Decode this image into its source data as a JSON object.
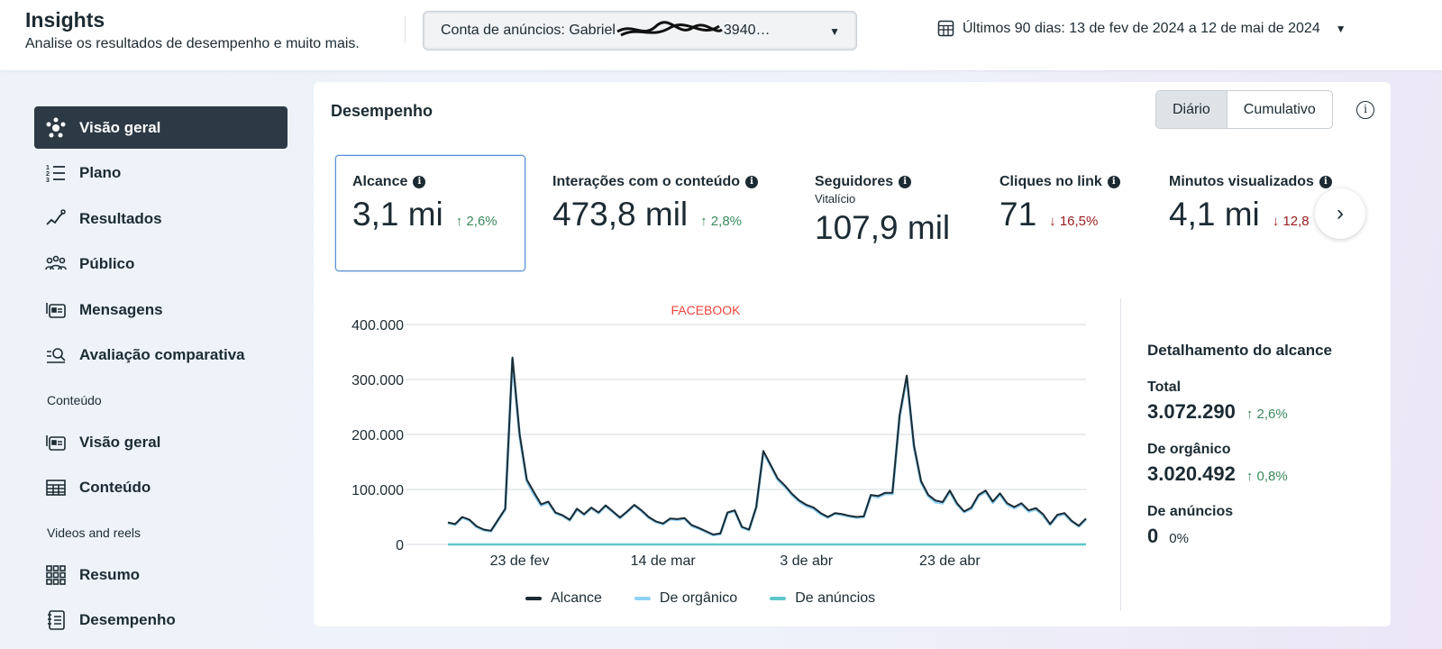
{
  "header": {
    "title": "Insights",
    "subtitle": "Analise os resultados de desempenho e muito mais.",
    "account_label": "Conta de anúncios: Gabriel",
    "account_suffix": "3940…",
    "date_range": "Últimos 90 dias: 13 de fev de 2024 a 12 de mai de 2024"
  },
  "sidebar": {
    "items": [
      {
        "label": "Visão geral",
        "icon": "network-icon"
      },
      {
        "label": "Plano",
        "icon": "numbered-list-icon"
      },
      {
        "label": "Resultados",
        "icon": "trend-icon"
      },
      {
        "label": "Público",
        "icon": "people-icon"
      },
      {
        "label": "Mensagens",
        "icon": "messages-icon"
      },
      {
        "label": "Avaliação comparativa",
        "icon": "benchmark-icon"
      }
    ],
    "section_content": "Conteúdo",
    "content_items": [
      {
        "label": "Visão geral",
        "icon": "content-overview-icon"
      },
      {
        "label": "Conteúdo",
        "icon": "table-icon"
      }
    ],
    "section_video": "Videos and reels",
    "video_items": [
      {
        "label": "Resumo",
        "icon": "grid-icon"
      },
      {
        "label": "Desempenho",
        "icon": "notebook-icon"
      }
    ]
  },
  "panel": {
    "title": "Desempenho",
    "toggle": [
      "Diário",
      "Cumulativo"
    ],
    "metrics": [
      {
        "label": "Alcance",
        "value": "3,1 mi",
        "change": "↑ 2,6%",
        "dir": "up"
      },
      {
        "label": "Interações com o conteúdo",
        "value": "473,8 mil",
        "change": "↑ 2,8%",
        "dir": "up"
      },
      {
        "label": "Seguidores",
        "sub": "Vitalício",
        "value": "107,9 mil"
      },
      {
        "label": "Cliques no link",
        "value": "71",
        "change": "↓ 16,5%",
        "dir": "down"
      },
      {
        "label": "Minutos visualizados",
        "value": "4,1 mi",
        "change": "↓ 12,8",
        "dir": "down"
      }
    ],
    "breakdown": {
      "title": "Detalhamento do alcance",
      "rows": [
        {
          "label": "Total",
          "value": "3.072.290",
          "change": "↑ 2,6%"
        },
        {
          "label": "De orgânico",
          "value": "3.020.492",
          "change": "↑ 0,8%"
        },
        {
          "label": "De anúncios",
          "value": "0",
          "change": "0%"
        }
      ]
    }
  },
  "chart_data": {
    "type": "line",
    "title": "FACEBOOK",
    "x_start": "13 de fev de 2024",
    "x_end": "12 de mai de 2024",
    "xticks": [
      {
        "label": "23 de fev",
        "index": 10
      },
      {
        "label": "14 de mar",
        "index": 30
      },
      {
        "label": "3 de abr",
        "index": 50
      },
      {
        "label": "23 de abr",
        "index": 70
      }
    ],
    "yticks": [
      "0",
      "100.000",
      "200.000",
      "300.000",
      "400.000"
    ],
    "ylim": [
      0,
      400000
    ],
    "series": [
      {
        "name": "Alcance",
        "color": "#1c2b33",
        "values": [
          40000,
          37000,
          50000,
          45000,
          33000,
          27000,
          25000,
          45000,
          65000,
          340000,
          200000,
          118000,
          95000,
          73000,
          78000,
          58000,
          53000,
          45000,
          65000,
          55000,
          67000,
          58000,
          71000,
          60000,
          49000,
          60000,
          72000,
          62000,
          50000,
          42000,
          38000,
          47000,
          46000,
          48000,
          35000,
          30000,
          24000,
          18000,
          20000,
          58000,
          62000,
          32000,
          27000,
          68000,
          170000,
          145000,
          120000,
          107000,
          92000,
          80000,
          72000,
          67000,
          57000,
          50000,
          57000,
          55000,
          52000,
          50000,
          51000,
          90000,
          88000,
          94000,
          94000,
          235000,
          307000,
          180000,
          115000,
          90000,
          80000,
          77000,
          98000,
          75000,
          60000,
          67000,
          90000,
          98000,
          78000,
          93000,
          75000,
          68000,
          75000,
          62000,
          66000,
          55000,
          37000,
          54000,
          57000,
          43000,
          34000,
          47000
        ]
      },
      {
        "name": "De orgânico",
        "color": "#8fd0f5",
        "values": [
          39000,
          36000,
          49000,
          44000,
          32000,
          26000,
          24000,
          44000,
          64000,
          336000,
          197000,
          115000,
          91000,
          71000,
          76000,
          57000,
          52000,
          44000,
          64000,
          54000,
          66000,
          57000,
          70000,
          59000,
          48000,
          59000,
          71000,
          61000,
          49000,
          41000,
          37000,
          46000,
          45000,
          47000,
          34000,
          29000,
          23000,
          17000,
          19000,
          57000,
          61000,
          31000,
          26000,
          67000,
          168000,
          143000,
          118000,
          105000,
          90000,
          78000,
          70000,
          65000,
          55000,
          49000,
          56000,
          54000,
          51000,
          49000,
          50000,
          89000,
          86000,
          92000,
          92000,
          232000,
          304000,
          178000,
          113000,
          88000,
          77000,
          75000,
          96000,
          73000,
          59000,
          65000,
          88000,
          96000,
          76000,
          91000,
          73000,
          66000,
          73000,
          60000,
          64000,
          53000,
          36000,
          52000,
          55000,
          42000,
          33000,
          46000
        ]
      },
      {
        "name": "De anúncios",
        "color": "#5ec8c8",
        "values": [
          0,
          0,
          0,
          0,
          0,
          0,
          0,
          0,
          0,
          0,
          0,
          0,
          0,
          0,
          0,
          0,
          0,
          0,
          0,
          0,
          0,
          0,
          0,
          0,
          0,
          0,
          0,
          0,
          0,
          0,
          0,
          0,
          0,
          0,
          0,
          0,
          0,
          0,
          0,
          0,
          0,
          0,
          0,
          0,
          0,
          0,
          0,
          0,
          0,
          0,
          0,
          0,
          0,
          0,
          0,
          0,
          0,
          0,
          0,
          0,
          0,
          0,
          0,
          0,
          0,
          0,
          0,
          0,
          0,
          0,
          0,
          0,
          0,
          0,
          0,
          0,
          0,
          0,
          0,
          0,
          0,
          0,
          0,
          0,
          0,
          0,
          0,
          0,
          0,
          0
        ]
      }
    ]
  }
}
